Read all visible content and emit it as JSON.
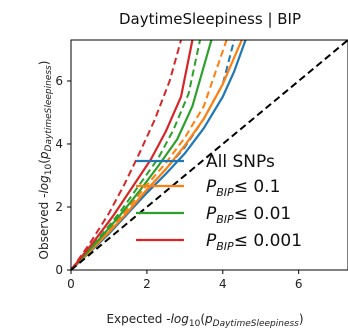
{
  "chart_data": {
    "type": "line",
    "title": "DaytimeSleepiness | BIP",
    "xlabel": "Expected -log₁₀(p_DaytimeSleepiness)",
    "ylabel": "Observed -log₁₀(p_DaytimeSleepiness)",
    "xlim": [
      0,
      7.3
    ],
    "ylim": [
      0,
      7.3
    ],
    "xticks": [
      0,
      2,
      4,
      6
    ],
    "yticks": [
      0,
      2,
      4,
      6
    ],
    "grid": false,
    "legend_position": "lower-right",
    "reference_line": {
      "style": "dashed",
      "color": "#000000",
      "slope": 1
    },
    "series": [
      {
        "name": "All SNPs",
        "color": "#1f77b4",
        "x": [
          0,
          1,
          1.5,
          2,
          2.5,
          3,
          3.5,
          4,
          4.3,
          4.6
        ],
        "y": [
          0,
          1.15,
          1.8,
          2.45,
          3.05,
          3.7,
          4.5,
          5.5,
          6.3,
          7.3
        ],
        "expected": {
          "x": [
            0,
            1,
            1.5,
            2,
            2.5,
            3,
            3.5,
            4,
            4.3
          ],
          "y": [
            0,
            1.2,
            1.85,
            2.55,
            3.2,
            3.9,
            4.8,
            5.9,
            7.3
          ]
        }
      },
      {
        "name": "P_BIP ≤ 0.1",
        "color": "#ff7f0e",
        "x": [
          0,
          1,
          1.5,
          2,
          2.5,
          3,
          3.5,
          4,
          4.5
        ],
        "y": [
          0,
          1.2,
          1.85,
          2.55,
          3.2,
          3.95,
          4.8,
          5.9,
          7.3
        ],
        "expected": {
          "x": [
            0,
            1,
            1.5,
            2,
            2.5,
            3,
            3.5,
            4.1
          ],
          "y": [
            0,
            1.25,
            1.95,
            2.7,
            3.4,
            4.2,
            5.2,
            7.3
          ]
        }
      },
      {
        "name": "P_BIP ≤ 0.01",
        "color": "#2ca02c",
        "x": [
          0,
          0.8,
          1.3,
          1.8,
          2.3,
          2.8,
          3.2,
          3.7
        ],
        "y": [
          0,
          1.05,
          1.75,
          2.5,
          3.3,
          4.15,
          5.2,
          7.3
        ],
        "expected": {
          "x": [
            0,
            0.8,
            1.3,
            1.8,
            2.3,
            2.7,
            3.1,
            3.4
          ],
          "y": [
            0,
            1.1,
            1.85,
            2.7,
            3.55,
            4.45,
            5.6,
            7.3
          ]
        }
      },
      {
        "name": "P_BIP ≤ 0.001",
        "color": "#d62728",
        "x": [
          0,
          0.6,
          1.1,
          1.6,
          2.1,
          2.5,
          2.9,
          3.2
        ],
        "y": [
          0,
          0.9,
          1.7,
          2.6,
          3.5,
          4.4,
          5.5,
          7.3
        ],
        "expected": {
          "x": [
            0,
            0.5,
            1,
            1.4,
            1.8,
            2.2,
            2.6,
            2.9
          ],
          "y": [
            0,
            0.85,
            1.8,
            2.7,
            3.7,
            4.75,
            6.0,
            7.3
          ]
        }
      }
    ]
  }
}
